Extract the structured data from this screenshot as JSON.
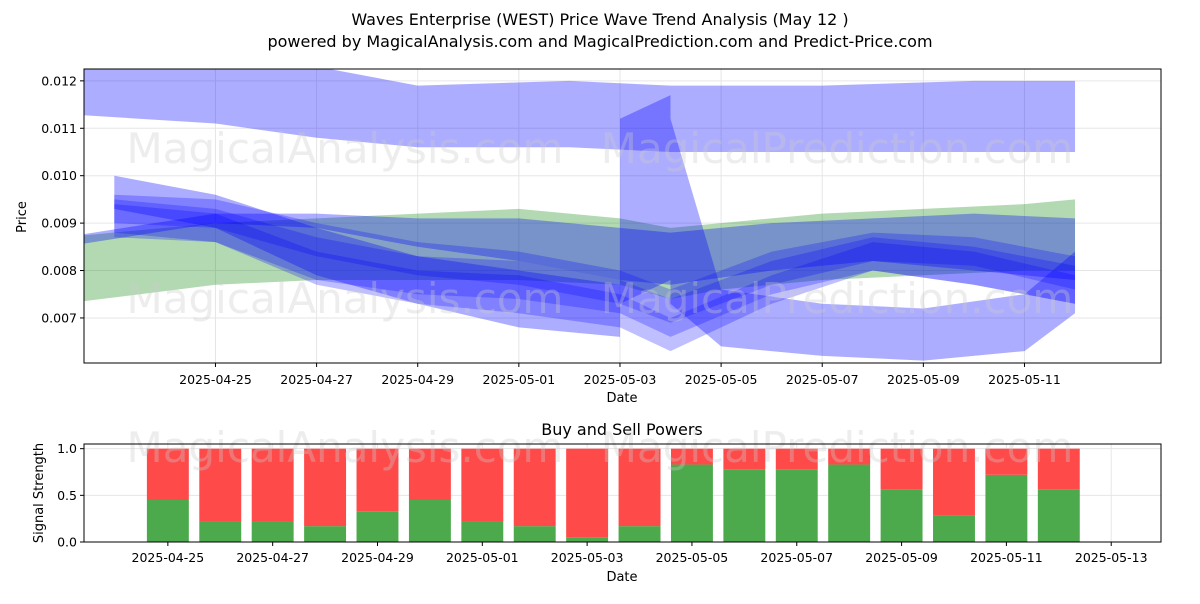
{
  "title_line1": "Waves Enterprise (WEST) Price Wave Trend Analysis (May 12 )",
  "title_line2": "powered by MagicalAnalysis.com and MagicalPrediction.com and Predict-Price.com",
  "watermarks": [
    "MagicalAnalysis.com",
    "MagicalPrediction.com"
  ],
  "colors": {
    "blue_band": "#0000ff",
    "green_band": "#008000",
    "buy": "#4caa4c",
    "sell": "#ff4a4a",
    "grid": "#e6e6e6"
  },
  "chart_data": [
    {
      "type": "area",
      "title": "",
      "xlabel": "Date",
      "ylabel": "Price",
      "grid": true,
      "xlim": [
        "2025-04-22",
        "2025-05-13"
      ],
      "ylim": [
        0.00605,
        0.01225
      ],
      "x_ticks": [
        "2025-04-25",
        "2025-04-27",
        "2025-04-29",
        "2025-05-01",
        "2025-05-03",
        "2025-05-05",
        "2025-05-07",
        "2025-05-09",
        "2025-05-11"
      ],
      "y_ticks": [
        "0.007",
        "0.008",
        "0.009",
        "0.010",
        "0.011",
        "0.012"
      ],
      "series": [
        {
          "color": "blue",
          "opacity": 0.32,
          "x": [
            "2025-04-22",
            "2025-04-25",
            "2025-04-27",
            "2025-04-29",
            "2025-05-02",
            "2025-05-04",
            "2025-05-07",
            "2025-05-10",
            "2025-05-12"
          ],
          "upper": [
            0.0123,
            0.0123,
            0.0123,
            0.0119,
            0.012,
            0.0119,
            0.0119,
            0.012,
            0.012
          ],
          "lower": [
            0.0113,
            0.0111,
            0.0108,
            0.0106,
            0.0106,
            0.0105,
            0.0105,
            0.0105,
            0.0105
          ]
        },
        {
          "color": "green",
          "opacity": 0.3,
          "x": [
            "2025-04-22",
            "2025-04-25",
            "2025-04-27",
            "2025-04-29",
            "2025-05-01",
            "2025-05-03",
            "2025-05-04",
            "2025-05-05",
            "2025-05-07",
            "2025-05-09",
            "2025-05-11",
            "2025-05-12"
          ],
          "upper": [
            0.0087,
            0.009,
            0.0091,
            0.0092,
            0.0093,
            0.0091,
            0.0089,
            0.009,
            0.0092,
            0.0093,
            0.0094,
            0.0095
          ],
          "lower": [
            0.0073,
            0.0077,
            0.0078,
            0.0078,
            0.0078,
            0.0077,
            0.0074,
            0.0076,
            0.0078,
            0.0079,
            0.008,
            0.008
          ]
        },
        {
          "color": "blue",
          "opacity": 0.32,
          "x": [
            "2025-04-22",
            "2025-04-25",
            "2025-04-27",
            "2025-04-29",
            "2025-05-01",
            "2025-05-03",
            "2025-05-04",
            "2025-05-06",
            "2025-05-08",
            "2025-05-10",
            "2025-05-12"
          ],
          "upper": [
            0.0087,
            0.0092,
            0.0092,
            0.0091,
            0.0091,
            0.0089,
            0.0088,
            0.009,
            0.0091,
            0.0092,
            0.0091
          ],
          "lower": [
            0.0085,
            0.009,
            0.0089,
            0.0085,
            0.0082,
            0.0078,
            0.0077,
            0.008,
            0.0082,
            0.008,
            0.0078
          ]
        },
        {
          "color": "blue",
          "opacity": 0.25,
          "x": [
            "2025-04-23",
            "2025-04-25",
            "2025-04-27",
            "2025-04-29",
            "2025-05-01",
            "2025-05-03",
            "2025-05-04",
            "2025-05-06",
            "2025-05-08",
            "2025-05-10",
            "2025-05-12"
          ],
          "upper": [
            0.0095,
            0.0093,
            0.0087,
            0.0083,
            0.0082,
            0.0078,
            0.0074,
            0.0082,
            0.0087,
            0.0085,
            0.0081
          ],
          "lower": [
            0.0087,
            0.0086,
            0.0078,
            0.0075,
            0.0074,
            0.0071,
            0.0066,
            0.0075,
            0.008,
            0.0077,
            0.0073
          ]
        },
        {
          "color": "blue",
          "opacity": 0.25,
          "x": [
            "2025-04-23",
            "2025-04-25",
            "2025-04-27",
            "2025-04-29",
            "2025-05-01",
            "2025-05-03",
            "2025-05-04",
            "2025-05-06",
            "2025-05-08",
            "2025-05-10",
            "2025-05-12"
          ],
          "upper": [
            0.0094,
            0.0092,
            0.0084,
            0.008,
            0.0079,
            0.0075,
            0.007,
            0.0079,
            0.0086,
            0.0084,
            0.0079
          ],
          "lower": [
            0.0088,
            0.0086,
            0.0077,
            0.0073,
            0.0071,
            0.0068,
            0.0063,
            0.0073,
            0.008,
            0.0077,
            0.0073
          ]
        },
        {
          "color": "blue",
          "opacity": 0.25,
          "x": [
            "2025-04-23",
            "2025-04-25",
            "2025-04-27",
            "2025-04-29",
            "2025-05-01",
            "2025-05-03",
            "2025-05-04",
            "2025-05-06",
            "2025-05-08",
            "2025-05-10",
            "2025-05-12"
          ],
          "upper": [
            0.0096,
            0.0095,
            0.009,
            0.0086,
            0.0084,
            0.008,
            0.0076,
            0.0084,
            0.0088,
            0.0087,
            0.0083
          ],
          "lower": [
            0.009,
            0.0089,
            0.0083,
            0.0079,
            0.0077,
            0.0073,
            0.0069,
            0.0077,
            0.0082,
            0.0081,
            0.0076
          ]
        },
        {
          "color": "blue",
          "opacity": 0.32,
          "x": [
            "2025-04-23",
            "2025-04-25",
            "2025-04-27",
            "2025-04-29",
            "2025-05-01",
            "2025-05-03",
            "2025-05-03",
            "2025-05-04",
            "2025-05-04",
            "2025-05-05",
            "2025-05-05",
            "2025-05-07",
            "2025-05-09",
            "2025-05-11",
            "2025-05-12"
          ],
          "upper": [
            0.01,
            0.0096,
            0.0089,
            0.0083,
            0.008,
            0.0077,
            0.0112,
            0.0117,
            0.0112,
            0.0076,
            0.0076,
            0.0073,
            0.0072,
            0.0075,
            0.0084
          ],
          "lower": [
            0.0093,
            0.0089,
            0.0079,
            0.0073,
            0.0068,
            0.0066,
            0.0073,
            0.0078,
            0.0073,
            0.0064,
            0.0064,
            0.0062,
            0.0061,
            0.0063,
            0.0071
          ]
        }
      ]
    },
    {
      "type": "bar",
      "title": "Buy and Sell Powers",
      "xlabel": "Date",
      "ylabel": "Signal Strength",
      "grid": true,
      "ylim": [
        0,
        1.05
      ],
      "y_ticks": [
        "0.0",
        "0.5",
        "1.0"
      ],
      "x_ticks": [
        "2025-04-25",
        "2025-04-27",
        "2025-04-29",
        "2025-05-01",
        "2025-05-03",
        "2025-05-05",
        "2025-05-07",
        "2025-05-09",
        "2025-05-11",
        "2025-05-13"
      ],
      "categories": [
        "2025-04-25",
        "2025-04-26",
        "2025-04-27",
        "2025-04-28",
        "2025-04-29",
        "2025-04-30",
        "2025-05-01",
        "2025-05-02",
        "2025-05-03",
        "2025-05-04",
        "2025-05-05",
        "2025-05-06",
        "2025-05-07",
        "2025-05-08",
        "2025-05-09",
        "2025-05-10",
        "2025-05-11",
        "2025-05-12"
      ],
      "series": [
        {
          "color": "green",
          "values": [
            0.45,
            0.22,
            0.22,
            0.17,
            0.33,
            0.45,
            0.22,
            0.17,
            0.05,
            0.17,
            0.83,
            0.78,
            0.78,
            0.83,
            0.56,
            0.28,
            0.72,
            0.56
          ]
        },
        {
          "color": "red",
          "values": [
            0.55,
            0.78,
            0.78,
            0.83,
            0.67,
            0.55,
            0.78,
            0.83,
            0.95,
            0.83,
            0.17,
            0.22,
            0.22,
            0.17,
            0.44,
            0.72,
            0.28,
            0.44
          ]
        }
      ]
    }
  ]
}
